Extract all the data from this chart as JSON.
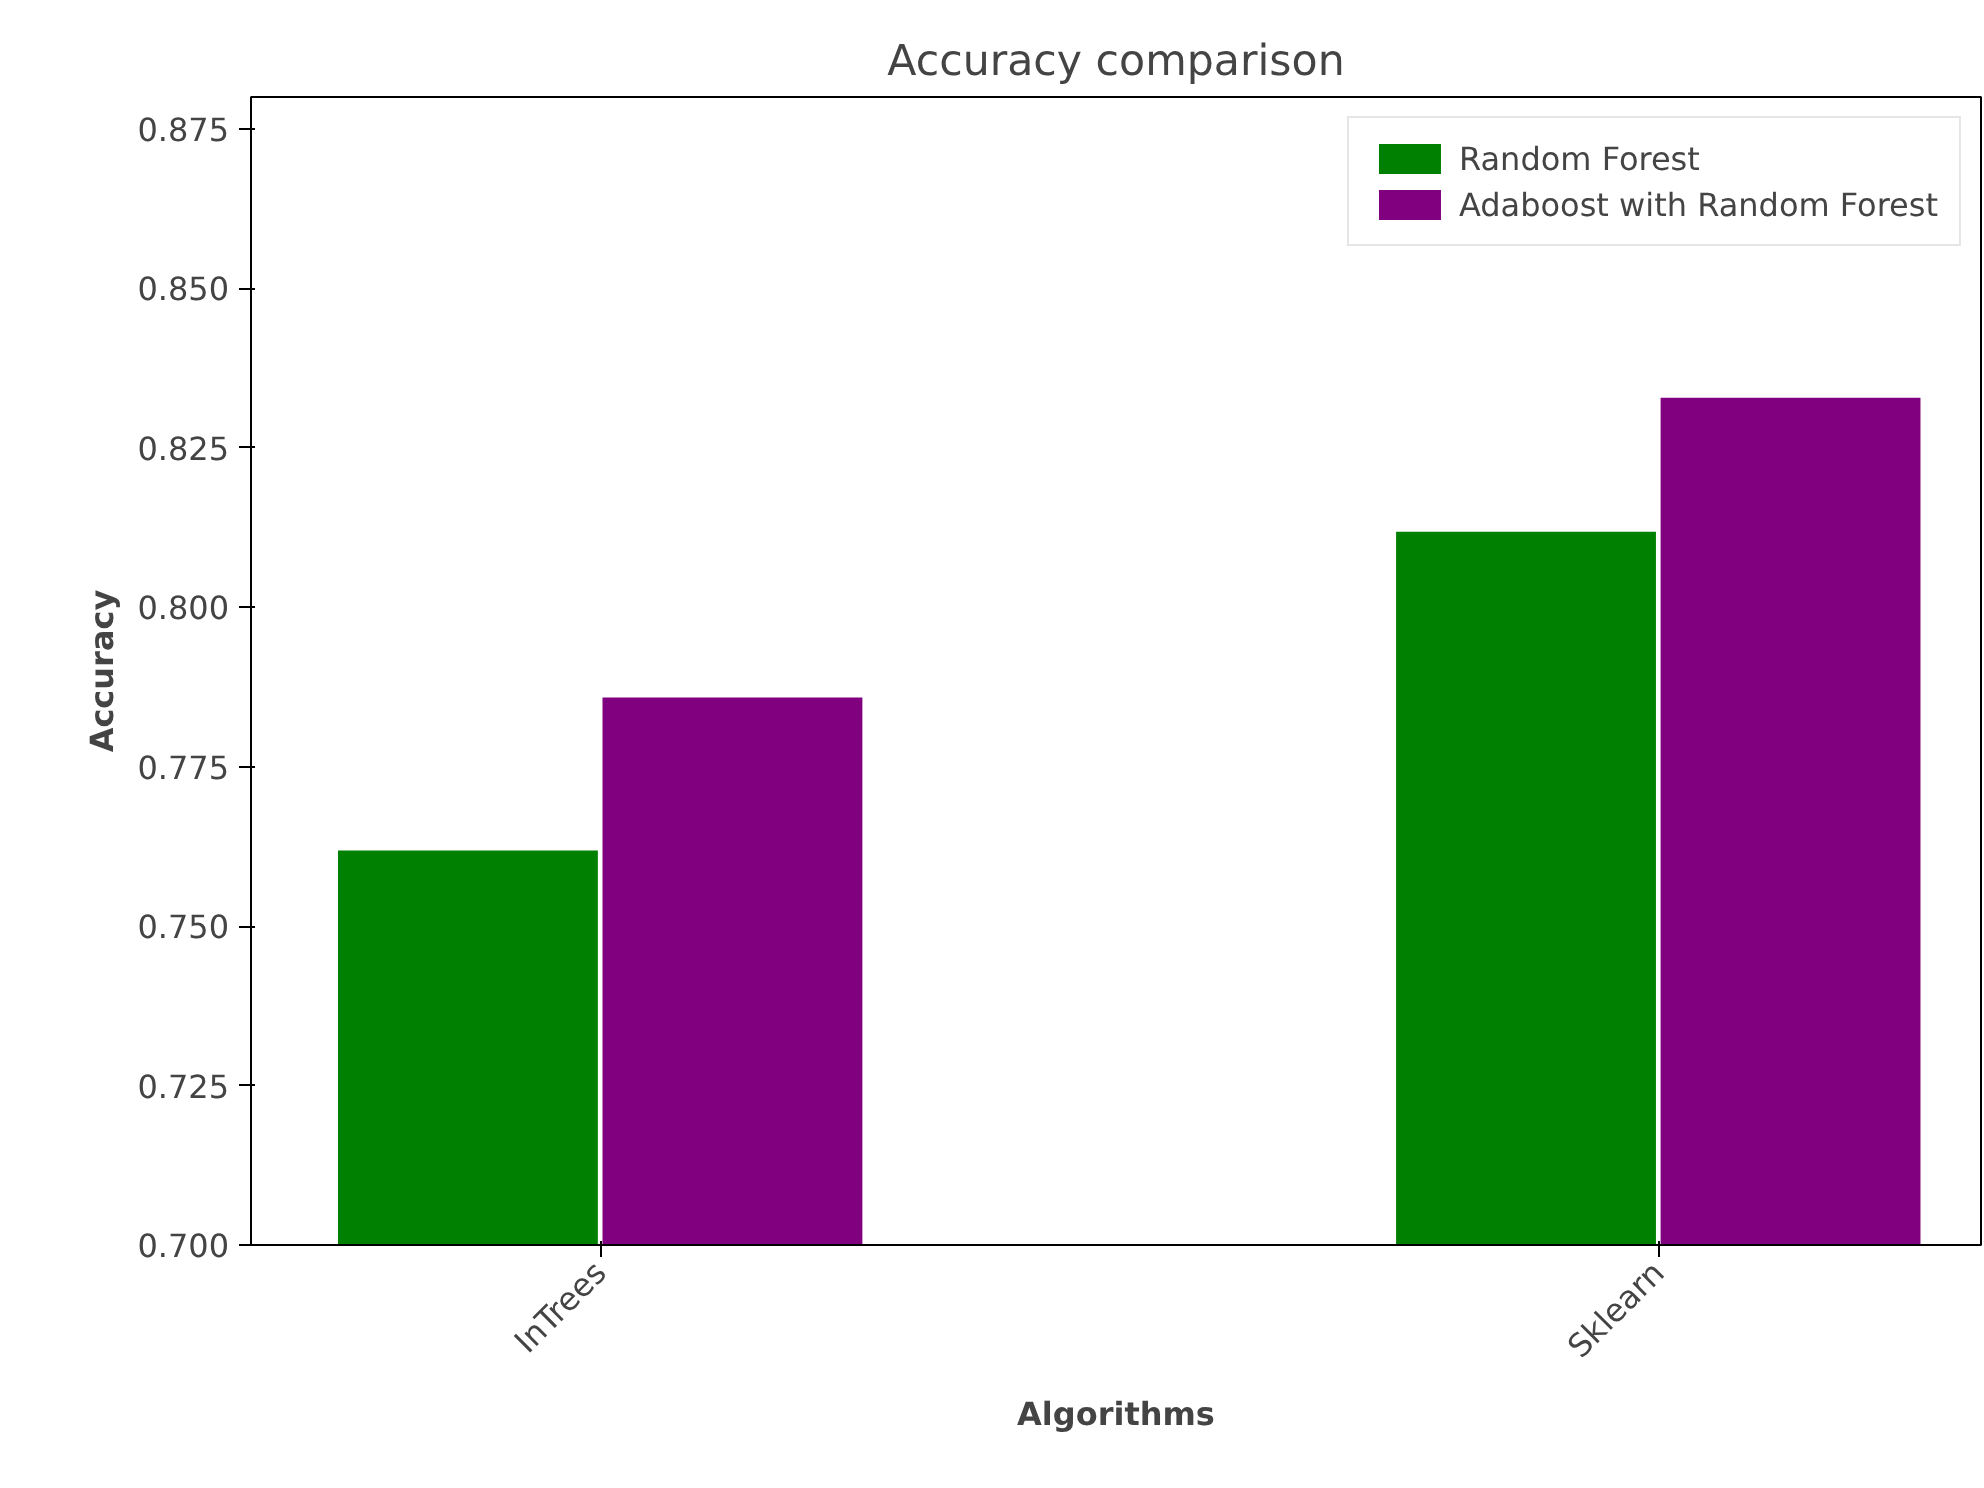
{
  "chart_data": {
    "type": "bar",
    "title": "Accuracy comparison",
    "xlabel": "Algorithms",
    "ylabel": "Accuracy",
    "categories": [
      "InTrees",
      "Sklearn"
    ],
    "series": [
      {
        "name": "Random Forest",
        "color": "#008000",
        "values": [
          0.762,
          0.812
        ]
      },
      {
        "name": "Adaboost with Random Forest",
        "color": "#800080",
        "values": [
          0.786,
          0.833
        ]
      }
    ],
    "ylim": [
      0.7,
      0.88
    ],
    "yticks": [
      {
        "value": 0.7,
        "label": "0.700"
      },
      0.725,
      {
        "value": 0.75,
        "label": "0.750"
      },
      0.775,
      {
        "value": 0.8,
        "label": "0.800"
      },
      0.825,
      {
        "value": 0.85,
        "label": "0.850"
      },
      0.875
    ],
    "grid": false,
    "legend": "top right"
  }
}
